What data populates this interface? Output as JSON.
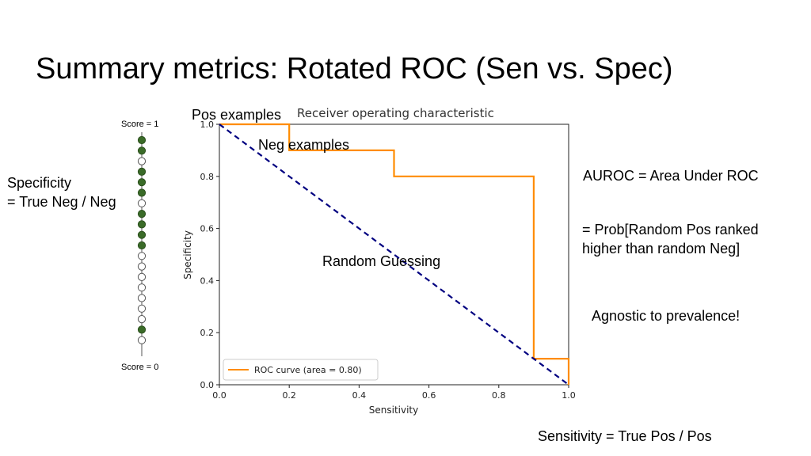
{
  "slide": {
    "title": "Summary metrics: Rotated ROC (Sen vs. Spec)",
    "specificity_def_line1": "Specificity",
    "specificity_def_line2": "= True Neg / Neg",
    "pos_examples": "Pos examples",
    "neg_examples": "Neg examples",
    "random_guessing": "Random Guessing",
    "auroc_def": "AUROC = Area Under ROC",
    "prob_def_line1": "= Prob[Random Pos ranked",
    "prob_def_line2": "higher than random Neg]",
    "agnostic": "Agnostic to prevalence!",
    "sensitivity_def": "Sensitivity = True Pos / Pos"
  },
  "score_column": {
    "top_label": "Score = 1",
    "bottom_label": "Score = 0",
    "items": [
      "pos",
      "pos",
      "neg",
      "pos",
      "pos",
      "pos",
      "neg",
      "pos",
      "pos",
      "pos",
      "pos",
      "neg",
      "neg",
      "neg",
      "neg",
      "neg",
      "neg",
      "neg",
      "pos",
      "neg"
    ],
    "colors": {
      "pos": "#3a6b28",
      "neg": "#ffffff"
    }
  },
  "chart_data": {
    "type": "line",
    "title": "Receiver operating characteristic",
    "xlabel": "Sensitivity",
    "ylabel": "Specificity",
    "xlim": [
      0.0,
      1.0
    ],
    "ylim": [
      0.0,
      1.0
    ],
    "xticks": [
      "0.0",
      "0.2",
      "0.4",
      "0.6",
      "0.8",
      "1.0"
    ],
    "yticks": [
      "0.0",
      "0.2",
      "0.4",
      "0.6",
      "0.8",
      "1.0"
    ],
    "grid": false,
    "legend_position": "bottom-left",
    "series": [
      {
        "name": "ROC curve (area = 0.80)",
        "color": "#ff8c00",
        "style": "solid",
        "x": [
          0.0,
          0.2,
          0.2,
          0.5,
          0.5,
          0.9,
          0.9,
          1.0,
          1.0
        ],
        "y": [
          1.0,
          1.0,
          0.9,
          0.9,
          0.8,
          0.8,
          0.1,
          0.1,
          0.0
        ]
      },
      {
        "color": "#000080",
        "style": "dashed",
        "x": [
          0.0,
          1.0
        ],
        "y": [
          1.0,
          0.0
        ]
      }
    ]
  }
}
